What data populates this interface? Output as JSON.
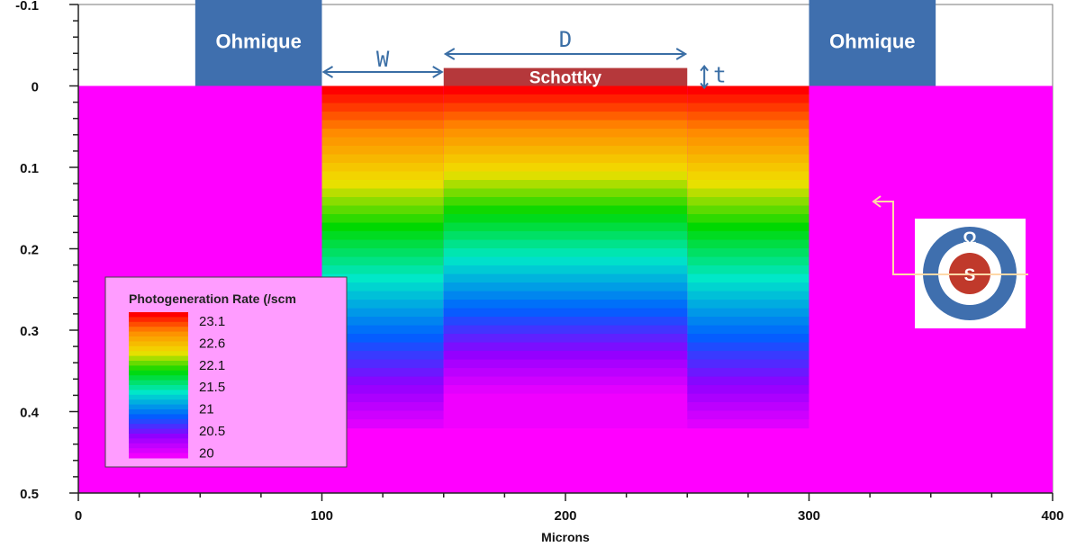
{
  "chart_data": {
    "type": "heatmap",
    "xlabel": "Microns",
    "xlim": [
      0,
      400
    ],
    "ylim": [
      -0.1,
      0.5
    ],
    "y_inverted": true,
    "x_ticks": [
      0,
      100,
      200,
      300,
      400
    ],
    "y_ticks": [
      -0.1,
      0,
      0.1,
      0.2,
      0.3,
      0.4,
      0.5
    ],
    "y_tick_labels": [
      "-0.1",
      "0",
      "0.1",
      "0.2",
      "0.3",
      "0.4",
      "0.5"
    ],
    "background_color": "#ff00ff",
    "illuminated_windows": [
      {
        "x_start": 100,
        "x_end": 150,
        "y_top": 0,
        "y_bottom": 0.42
      },
      {
        "x_start": 150,
        "x_end": 250,
        "y_top": 0,
        "y_bottom": 0.42
      },
      {
        "x_start": 250,
        "x_end": 300,
        "y_top": 0,
        "y_bottom": 0.42
      }
    ],
    "contacts": [
      {
        "label": "Ohmique",
        "x_start": 48,
        "x_end": 100,
        "y_top": -0.11,
        "y_bottom": 0,
        "color": "#3f6fae"
      },
      {
        "label": "Schottky",
        "x_start": 150,
        "x_end": 250,
        "y_top": -0.022,
        "y_bottom": 0,
        "color": "#b5383b"
      },
      {
        "label": "Ohmique",
        "x_start": 300,
        "x_end": 352,
        "y_top": -0.11,
        "y_bottom": 0,
        "color": "#3f6fae"
      }
    ],
    "dimension_labels": [
      "W",
      "D",
      "t"
    ],
    "legend": {
      "title": "Photogeneration Rate (/scm",
      "position": "bottom-left",
      "values": [
        "23.1",
        "22.6",
        "22.1",
        "21.5",
        "21",
        "20.5",
        "20"
      ],
      "colors": [
        "#ff0000",
        "#ff8800",
        "#f0e000",
        "#00d800",
        "#00e8c8",
        "#0060ff",
        "#9000ff",
        "#f000ff"
      ]
    },
    "inset": {
      "outer_label": "Ω",
      "inner_label": "S",
      "outer_color": "#3f6fae",
      "inner_color": "#c0392b"
    }
  }
}
